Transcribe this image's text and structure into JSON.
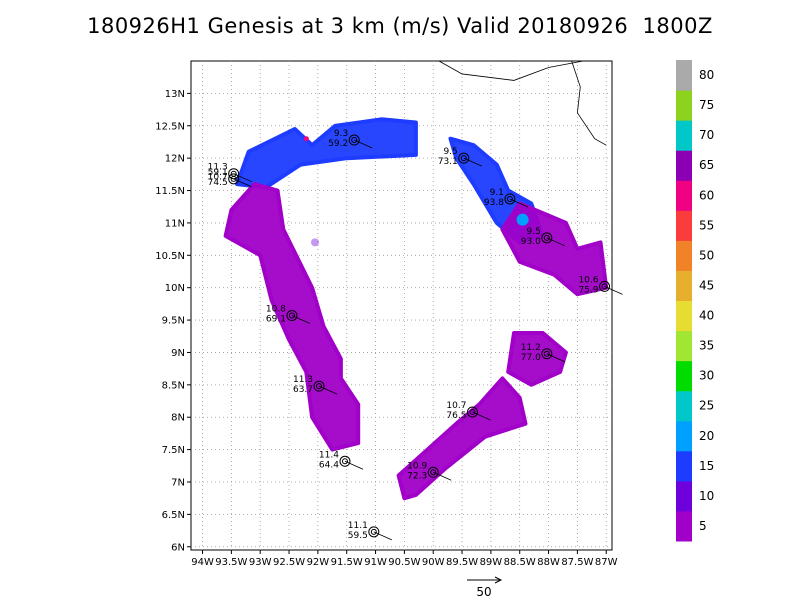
{
  "title": "180926H1 Genesis at 3 km (m/s) Valid 20180926  1800Z",
  "chart_data": {
    "type": "heatmap",
    "title": "180926H1 Genesis at 3 km (m/s) Valid 20180926  1800Z",
    "x_ticks": [
      "94W",
      "93.5W",
      "93W",
      "92.5W",
      "92W",
      "91.5W",
      "91W",
      "90.5W",
      "90W",
      "89.5W",
      "89W",
      "88.5W",
      "88W",
      "87.5W",
      "87W"
    ],
    "y_ticks": [
      "6N",
      "6.5N",
      "7N",
      "7.5N",
      "8N",
      "8.5N",
      "9N",
      "9.5N",
      "10N",
      "10.5N",
      "11N",
      "11.5N",
      "12N",
      "12.5N",
      "13N"
    ],
    "xlim": [
      -94.2,
      -86.9
    ],
    "ylim": [
      5.95,
      13.5
    ],
    "colorbar_labels": [
      "5",
      "10",
      "15",
      "20",
      "25",
      "30",
      "35",
      "40",
      "45",
      "50",
      "55",
      "60",
      "65",
      "70",
      "75",
      "80"
    ],
    "colorbar_colors": [
      "#a000c8",
      "#6e00dc",
      "#1e3cff",
      "#00a0ff",
      "#00c8c8",
      "#00dc00",
      "#a0e632",
      "#e6dc32",
      "#e6af2d",
      "#f08228",
      "#fa3c3c",
      "#f00082",
      "#8c00b4",
      "#00c8c8",
      "#8cd21e",
      "#aaaaaa"
    ],
    "vector_reference": "50",
    "points": [
      {
        "lon": -93.46,
        "lat": 11.76,
        "labels": [
          "11.3",
          "10.7"
        ]
      },
      {
        "lon": -93.46,
        "lat": 11.68,
        "labels": [
          "59.1",
          "74.5"
        ]
      },
      {
        "lon": -91.37,
        "lat": 12.28,
        "labels": [
          "9.3",
          "59.2"
        ]
      },
      {
        "lon": -89.47,
        "lat": 12.0,
        "labels": [
          "9.5",
          "73.1"
        ]
      },
      {
        "lon": -88.67,
        "lat": 11.37,
        "labels": [
          "9.1",
          "93.8"
        ]
      },
      {
        "lon": -88.03,
        "lat": 10.77,
        "labels": [
          "9.5",
          "93.0"
        ]
      },
      {
        "lon": -87.03,
        "lat": 10.02,
        "labels": [
          "10.6",
          "75.9"
        ]
      },
      {
        "lon": -92.45,
        "lat": 9.57,
        "labels": [
          "10.8",
          "69.1"
        ]
      },
      {
        "lon": -88.03,
        "lat": 8.98,
        "labels": [
          "11.2",
          "77.0"
        ]
      },
      {
        "lon": -91.98,
        "lat": 8.48,
        "labels": [
          "11.3",
          "63.7"
        ]
      },
      {
        "lon": -89.32,
        "lat": 8.08,
        "labels": [
          "10.7",
          "76.5"
        ]
      },
      {
        "lon": -91.53,
        "lat": 7.32,
        "labels": [
          "11.4",
          "64.4"
        ]
      },
      {
        "lon": -90.0,
        "lat": 7.15,
        "labels": [
          "10.9",
          "72.3"
        ]
      },
      {
        "lon": -91.03,
        "lat": 6.23,
        "labels": [
          "11.1",
          "59.5"
        ]
      }
    ]
  }
}
